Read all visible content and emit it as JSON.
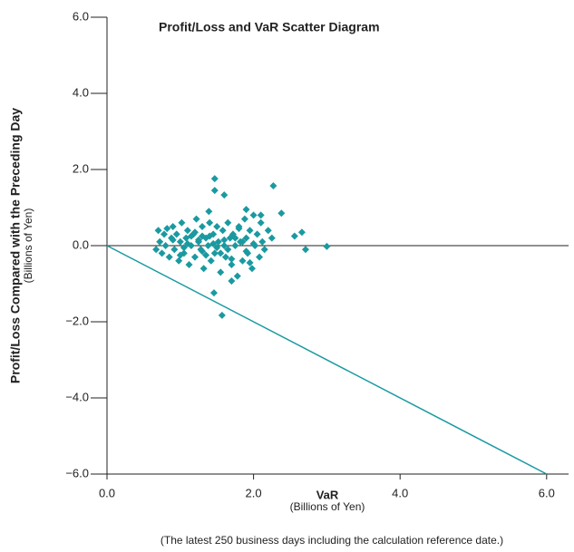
{
  "chart_data": {
    "type": "scatter",
    "title": "Profit/Loss and VaR Scatter Diagram",
    "x_label": "VaR",
    "x_unit": "(Billions of Yen)",
    "y_label": "Profit/Loss Compared with the Preceding Day",
    "y_unit": "(Billions of Yen)",
    "note": "(The latest 250 business days including the calculation reference date.)",
    "color": "#1a9aa0",
    "xlim": [
      0,
      6.3
    ],
    "ylim": [
      -6,
      6
    ],
    "xticks": [
      {
        "value": 0,
        "label": "0.0"
      },
      {
        "value": 2,
        "label": "2.0"
      },
      {
        "value": 4,
        "label": "4.0"
      },
      {
        "value": 6,
        "label": "6.0"
      }
    ],
    "yticks": [
      {
        "value": 6,
        "label": "6.0"
      },
      {
        "value": 4,
        "label": "4.0"
      },
      {
        "value": 2,
        "label": "2.0"
      },
      {
        "value": 0,
        "label": "0.0"
      },
      {
        "value": -2,
        "label": "−2.0"
      },
      {
        "value": -4,
        "label": "−4.0"
      },
      {
        "value": -6,
        "label": "−6.0"
      }
    ],
    "reference_line": {
      "x": [
        0,
        6
      ],
      "y": [
        0,
        -6
      ]
    },
    "x": [
      0.67,
      0.7,
      0.72,
      0.75,
      0.78,
      0.8,
      0.82,
      0.85,
      0.88,
      0.9,
      0.92,
      0.95,
      0.98,
      1.0,
      1.02,
      1.05,
      1.08,
      1.1,
      1.12,
      1.15,
      1.18,
      1.2,
      1.22,
      1.25,
      1.28,
      1.3,
      1.32,
      1.35,
      1.38,
      1.4,
      1.42,
      1.45,
      1.47,
      1.5,
      1.52,
      1.55,
      1.58,
      1.6,
      1.62,
      1.65,
      1.68,
      1.7,
      1.72,
      1.75,
      1.78,
      1.8,
      1.82,
      1.85,
      1.88,
      1.9,
      1.92,
      1.95,
      1.98,
      2.0,
      2.02,
      2.05,
      2.08,
      2.1,
      2.12,
      2.15,
      2.2,
      2.25,
      0.9,
      1.0,
      1.1,
      1.2,
      1.3,
      1.4,
      1.5,
      1.6,
      1.7,
      1.8,
      1.9,
      2.0,
      1.05,
      1.25,
      1.45,
      1.65,
      1.85,
      1.15,
      1.35,
      1.55,
      1.75,
      1.95,
      1.47,
      1.6,
      1.47,
      1.57,
      1.46,
      1.7,
      1.39,
      2.27,
      2.38,
      2.56,
      2.66,
      2.71,
      3.0,
      2.1,
      1.9,
      1.3
    ],
    "y": [
      -0.1,
      0.4,
      0.1,
      -0.2,
      0.3,
      0.0,
      0.45,
      -0.3,
      0.2,
      0.5,
      -0.1,
      0.3,
      -0.4,
      0.1,
      0.6,
      -0.2,
      0.2,
      0.4,
      -0.5,
      0.0,
      0.3,
      -0.3,
      0.7,
      0.1,
      -0.1,
      0.5,
      -0.6,
      0.2,
      0.0,
      0.6,
      -0.4,
      0.3,
      -0.2,
      0.5,
      0.1,
      -0.7,
      0.4,
      0.0,
      -0.3,
      0.6,
      0.2,
      -0.5,
      0.3,
      0.0,
      -0.8,
      0.5,
      0.1,
      -0.4,
      0.7,
      0.2,
      -0.2,
      0.4,
      -0.6,
      0.8,
      0.0,
      0.3,
      -0.3,
      0.6,
      0.1,
      -0.1,
      0.4,
      0.2,
      0.15,
      -0.25,
      0.05,
      0.35,
      -0.15,
      0.25,
      -0.05,
      0.15,
      -0.35,
      0.45,
      -0.15,
      0.05,
      -0.05,
      0.15,
      0.05,
      -0.1,
      0.1,
      0.25,
      -0.25,
      -0.2,
      0.2,
      -0.45,
      1.76,
      1.33,
      1.45,
      -1.83,
      -1.24,
      -0.93,
      0.9,
      1.57,
      0.85,
      0.25,
      0.35,
      -0.1,
      -0.02,
      0.8,
      0.95,
      0.25
    ]
  }
}
